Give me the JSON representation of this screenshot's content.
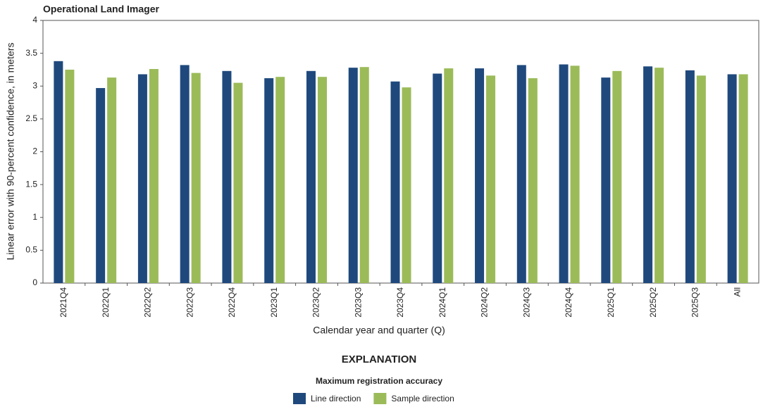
{
  "chart_data": {
    "type": "bar",
    "title": "Operational Land Imager",
    "x_label": "Calendar year and quarter (Q)",
    "y_label": "Linear error with 90-percent confidence, in meters",
    "legend_heading": "EXPLANATION",
    "legend_title": "Maximum registration accuracy",
    "categories": [
      "2021Q4",
      "2022Q1",
      "2022Q2",
      "2022Q3",
      "2022Q4",
      "2023Q1",
      "2023Q2",
      "2023Q3",
      "2023Q4",
      "2024Q1",
      "2024Q2",
      "2024Q3",
      "2024Q4",
      "2025Q1",
      "2025Q2",
      "2025Q3",
      "All"
    ],
    "series": [
      {
        "name": "Line direction",
        "color": "#1f497d",
        "values": [
          3.38,
          2.97,
          3.18,
          3.32,
          3.23,
          3.12,
          3.23,
          3.28,
          3.07,
          3.19,
          3.27,
          3.32,
          3.33,
          3.13,
          3.3,
          3.24,
          3.18
        ]
      },
      {
        "name": "Sample direction",
        "color": "#9bbb59",
        "values": [
          3.25,
          3.13,
          3.26,
          3.2,
          3.05,
          3.14,
          3.14,
          3.29,
          2.98,
          3.27,
          3.16,
          3.12,
          3.31,
          3.23,
          3.28,
          3.16,
          3.18
        ]
      }
    ],
    "ylim": [
      0,
      4
    ],
    "yticks": [
      0,
      0.5,
      1,
      1.5,
      2,
      2.5,
      3,
      3.5,
      4
    ]
  }
}
